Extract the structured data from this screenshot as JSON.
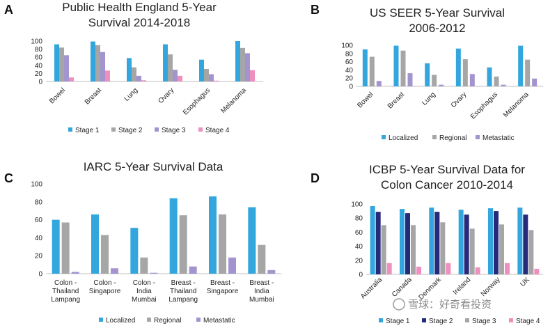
{
  "watermark": "雪球：好奇看投资",
  "chart_data": [
    {
      "panel": "A",
      "type": "bar",
      "title": [
        "Public Health England 5-Year",
        "Survival 2014-2018"
      ],
      "categories": [
        "Bowel",
        "Breast",
        "Lung",
        "Ovary",
        "Esophagus",
        "Melanoma"
      ],
      "series": [
        {
          "name": "Stage 1",
          "color": "#33a7dd",
          "values": [
            92,
            99,
            58,
            92,
            54,
            100
          ]
        },
        {
          "name": "Stage 2",
          "color": "#a6a6a6",
          "values": [
            84,
            90,
            35,
            67,
            31,
            83
          ]
        },
        {
          "name": "Stage 3",
          "color": "#a394cf",
          "values": [
            65,
            73,
            14,
            29,
            18,
            70
          ]
        },
        {
          "name": "Stage 4",
          "color": "#ef8fbe",
          "values": [
            10,
            27,
            3,
            14,
            2,
            28
          ]
        }
      ],
      "ylim": [
        0,
        100
      ],
      "yticks": [
        0,
        20,
        40,
        60,
        80,
        100
      ],
      "legend": "bottom",
      "grid": false
    },
    {
      "panel": "B",
      "type": "bar",
      "title": [
        "US SEER 5-Year Survival",
        "2006-2012"
      ],
      "categories": [
        "Bowel",
        "Breast",
        "Lung",
        "Ovary",
        "Esophagus",
        "Melanoma"
      ],
      "series": [
        {
          "name": "Localized",
          "color": "#33a7dd",
          "values": [
            90,
            99,
            56,
            92,
            46,
            99
          ]
        },
        {
          "name": "Regional",
          "color": "#a6a6a6",
          "values": [
            72,
            87,
            28,
            66,
            24,
            65
          ]
        },
        {
          "name": "Metastatic",
          "color": "#a394cf",
          "values": [
            13,
            32,
            4,
            30,
            4,
            19
          ]
        }
      ],
      "ylim": [
        0,
        100
      ],
      "yticks": [
        0,
        20,
        40,
        60,
        80,
        100
      ],
      "legend": "bottom",
      "grid": false
    },
    {
      "panel": "C",
      "type": "bar",
      "title": [
        "IARC 5-Year Survival Data"
      ],
      "categories": [
        [
          "Colon -",
          "Thailand",
          "Lampang"
        ],
        [
          "Colon -",
          "Singapore"
        ],
        [
          "Colon -",
          "India",
          "Mumbai"
        ],
        [
          "Breast -",
          "Thailand",
          "Lampang"
        ],
        [
          "Breast -",
          "Singapore"
        ],
        [
          "Breast -",
          "India",
          "Mumbai"
        ]
      ],
      "series": [
        {
          "name": "Localized",
          "color": "#33a7dd",
          "values": [
            60,
            66,
            51,
            84,
            86,
            74
          ]
        },
        {
          "name": "Regional",
          "color": "#a6a6a6",
          "values": [
            57,
            43,
            18,
            65,
            66,
            32
          ]
        },
        {
          "name": "Metastatic",
          "color": "#a394cf",
          "values": [
            2,
            6,
            1,
            8,
            18,
            4
          ]
        }
      ],
      "ylim": [
        0,
        100
      ],
      "yticks": [
        0,
        20,
        40,
        60,
        80,
        100
      ],
      "legend": "bottom",
      "grid": false
    },
    {
      "panel": "D",
      "type": "bar",
      "title": [
        "ICBP 5-Year Survival Data for",
        "Colon Cancer 2010-2014"
      ],
      "categories": [
        "Australia",
        "Canada",
        "Denmark",
        "Ireland",
        "Norway",
        "UK"
      ],
      "series": [
        {
          "name": "Stage 1",
          "color": "#33a7dd",
          "values": [
            97,
            93,
            95,
            92,
            94,
            95
          ]
        },
        {
          "name": "Stage 2",
          "color": "#262a7a",
          "values": [
            89,
            87,
            89,
            85,
            90,
            85
          ]
        },
        {
          "name": "Stage 3",
          "color": "#a6a6a6",
          "values": [
            70,
            70,
            74,
            65,
            71,
            63
          ]
        },
        {
          "name": "Stage 4",
          "color": "#ef8fbe",
          "values": [
            16,
            11,
            16,
            10,
            16,
            8
          ]
        }
      ],
      "ylim": [
        0,
        100
      ],
      "yticks": [
        0,
        20,
        40,
        60,
        80,
        100
      ],
      "legend": "bottom",
      "grid": false
    }
  ]
}
